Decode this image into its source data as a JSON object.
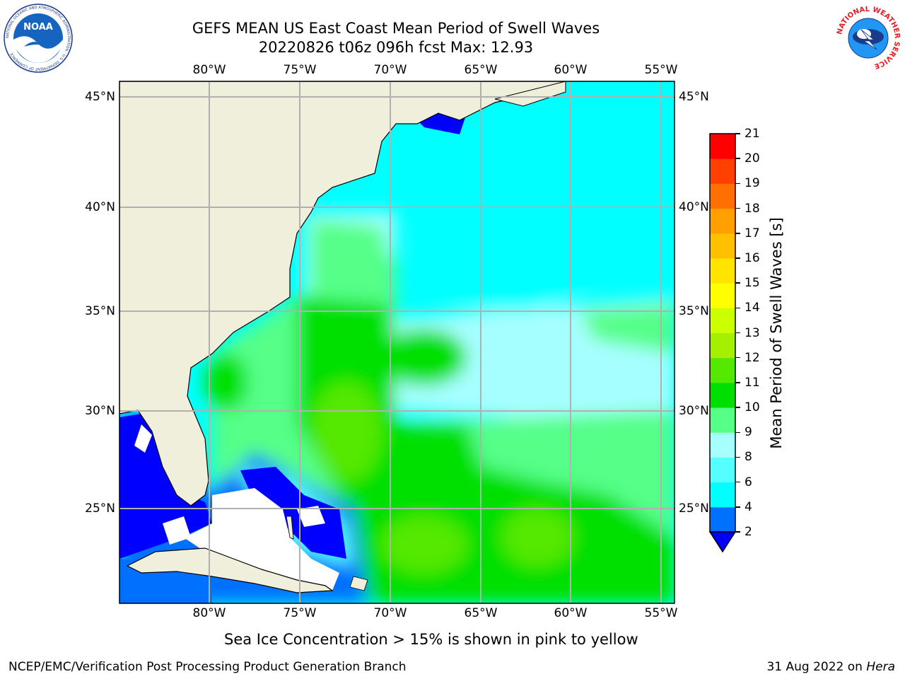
{
  "header": {
    "title_line1": "GEFS MEAN US East Coast Mean Period of Swell Waves",
    "title_line2": "20220826 t06z 096h fcst   Max: 12.93"
  },
  "logos": {
    "left_text": "NOAA",
    "left_ring_text": "NATIONAL OCEANIC AND ATMOSPHERIC ADMINISTRATION · U.S. DEPARTMENT OF COMMERCE",
    "right_ring_text": "NATIONAL WEATHER SERVICE"
  },
  "map": {
    "lon_labels": [
      "80°W",
      "75°W",
      "70°W",
      "65°W",
      "60°W",
      "55°W"
    ],
    "lat_labels": [
      "45°N",
      "40°N",
      "35°N",
      "30°N",
      "25°N"
    ],
    "land_color": "#efefdc",
    "ocean_no_data_color": "#ffffff"
  },
  "colorbar": {
    "label": "Mean Period of Swell Waves [s]",
    "ticks": [
      "2",
      "4",
      "6",
      "8",
      "9",
      "10",
      "11",
      "12",
      "13",
      "14",
      "15",
      "16",
      "17",
      "18",
      "19",
      "20",
      "21"
    ],
    "colors": [
      "#0070ff",
      "#00d0ff",
      "#00ffff",
      "#55ffff",
      "#a6ffff",
      "#55ff88",
      "#00e000",
      "#55e800",
      "#a4f000",
      "#ccff00",
      "#ffff00",
      "#ffe400",
      "#ffc000",
      "#ffa000",
      "#ff7000",
      "#ff4000",
      "#ff0000"
    ],
    "extend_color": "#0000ff"
  },
  "footer": {
    "note": "Sea Ice Concentration > 15% is shown in pink to yellow",
    "left": "NCEP/EMC/Verification Post Processing Product Generation Branch",
    "right_date": "31 Aug 2022 on ",
    "right_host": "Hera"
  }
}
